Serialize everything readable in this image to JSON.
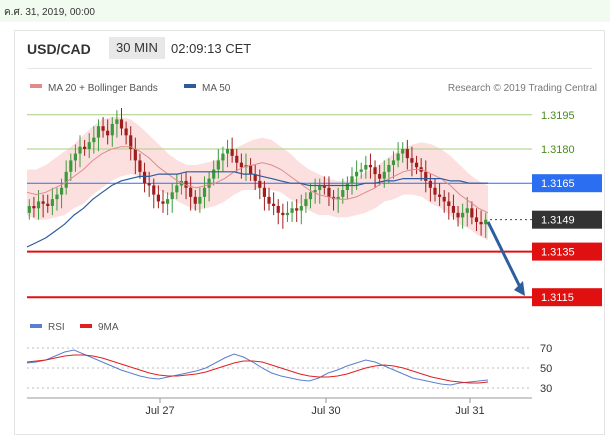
{
  "timestamp": "ค.ศ. 31, 2019, 00:00",
  "header": {
    "pair": "USD/CAD",
    "timeframe": "30 MIN",
    "time": "02:09:13 CET"
  },
  "legend": {
    "ma20": "MA 20 + Bollinger Bands",
    "ma50": "MA 50",
    "credit": "Research © 2019 Trading Central",
    "rsi": "RSI",
    "rsi_ma": "9MA"
  },
  "colors": {
    "topbar": "#f2fbef",
    "bull": "#3c9a3c",
    "bear": "#a01d1d",
    "bb_fill": "#fbd6d6",
    "ma20": "#e08a8a",
    "ma50": "#2f5b9a",
    "resistance": "#a7cf7e",
    "support": "#e01010",
    "pivot": "#2b6ef2",
    "last": "#333333",
    "arrow": "#2d5f9e",
    "rsi": "#5b7fd0",
    "rsi_ma": "#e02020"
  },
  "chart_data": [
    {
      "type": "candlestick",
      "title": "USD/CAD",
      "ylim": [
        1.3105,
        1.3205
      ],
      "x_ticks": [
        "Jul 27",
        "Jul 30",
        "Jul 31"
      ],
      "levels": [
        {
          "value": 1.3195,
          "label": "1.3195",
          "kind": "resistance"
        },
        {
          "value": 1.318,
          "label": "1.3180",
          "kind": "resistance"
        },
        {
          "value": 1.3165,
          "label": "1.3165",
          "kind": "pivot"
        },
        {
          "value": 1.3149,
          "label": "1.3149",
          "kind": "last"
        },
        {
          "value": 1.3135,
          "label": "1.3135",
          "kind": "support"
        },
        {
          "value": 1.3115,
          "label": "1.3115",
          "kind": "support"
        }
      ],
      "close": [
        1.3155,
        1.3154,
        1.3157,
        1.3156,
        1.3155,
        1.3158,
        1.316,
        1.3163,
        1.317,
        1.3175,
        1.3178,
        1.3181,
        1.318,
        1.3183,
        1.3185,
        1.319,
        1.3188,
        1.3186,
        1.3191,
        1.3193,
        1.3189,
        1.3186,
        1.318,
        1.3175,
        1.317,
        1.3165,
        1.3164,
        1.316,
        1.3157,
        1.3156,
        1.3158,
        1.3161,
        1.3164,
        1.3166,
        1.3163,
        1.3159,
        1.3156,
        1.3159,
        1.3163,
        1.3167,
        1.3171,
        1.3175,
        1.3178,
        1.318,
        1.3177,
        1.3174,
        1.3172,
        1.3173,
        1.3169,
        1.3166,
        1.3163,
        1.3159,
        1.3156,
        1.3155,
        1.3152,
        1.3151,
        1.3152,
        1.3154,
        1.3153,
        1.3155,
        1.3158,
        1.3161,
        1.3162,
        1.3164,
        1.3163,
        1.3159,
        1.3158,
        1.3159,
        1.3162,
        1.3165,
        1.3168,
        1.317,
        1.3171,
        1.3173,
        1.3172,
        1.3169,
        1.3167,
        1.317,
        1.3173,
        1.3175,
        1.3178,
        1.318,
        1.3176,
        1.3174,
        1.3172,
        1.317,
        1.3166,
        1.3163,
        1.316,
        1.3159,
        1.3157,
        1.3155,
        1.3152,
        1.315,
        1.3152,
        1.3154,
        1.315,
        1.3148,
        1.3147,
        1.3149
      ],
      "ma20": [
        1.3161,
        1.316,
        1.3161,
        1.3163,
        1.3165,
        1.3168,
        1.3171,
        1.3175,
        1.3178,
        1.318,
        1.3181,
        1.3181,
        1.3179,
        1.3176,
        1.3172,
        1.3169,
        1.3166,
        1.3164,
        1.3163,
        1.3164,
        1.3165,
        1.3167,
        1.317,
        1.3172,
        1.3173,
        1.3174,
        1.3173,
        1.3171,
        1.3168,
        1.3165,
        1.3162,
        1.316,
        1.3159,
        1.3158,
        1.3158,
        1.3159,
        1.3161,
        1.3163,
        1.3166,
        1.3168,
        1.317,
        1.3171,
        1.3171,
        1.3169,
        1.3167,
        1.3164,
        1.316,
        1.3157,
        1.3154,
        1.3152
      ],
      "ma50": [
        1.3137,
        1.3139,
        1.3141,
        1.3144,
        1.3147,
        1.3151,
        1.3154,
        1.3158,
        1.3161,
        1.3164,
        1.3166,
        1.3167,
        1.3168,
        1.3168,
        1.3169,
        1.3169,
        1.3169,
        1.317,
        1.317,
        1.317,
        1.317,
        1.317,
        1.317,
        1.3169,
        1.3169,
        1.3168,
        1.3167,
        1.3166,
        1.3165,
        1.3165,
        1.3164,
        1.3164,
        1.3164,
        1.3164,
        1.3164,
        1.3164,
        1.3165,
        1.3165,
        1.3166,
        1.3166,
        1.3167,
        1.3167,
        1.3167,
        1.3167,
        1.3167,
        1.3166,
        1.3166,
        1.3165,
        1.3165,
        1.3165
      ]
    },
    {
      "type": "line",
      "ylim": [
        20,
        80
      ],
      "y_ticks": [
        30,
        50,
        70
      ],
      "series": [
        {
          "name": "RSI",
          "values": [
            55,
            56,
            58,
            62,
            66,
            68,
            64,
            60,
            56,
            52,
            48,
            45,
            42,
            40,
            39,
            41,
            43,
            45,
            47,
            50,
            55,
            60,
            64,
            61,
            56,
            50,
            45,
            42,
            40,
            38,
            37,
            40,
            45,
            48,
            52,
            55,
            58,
            56,
            52,
            48,
            44,
            40,
            38,
            36,
            34,
            33,
            35,
            36,
            37,
            38
          ]
        },
        {
          "name": "9MA",
          "values": [
            56,
            57,
            58,
            60,
            62,
            63,
            63,
            62,
            60,
            57,
            54,
            51,
            48,
            45,
            43,
            42,
            42,
            43,
            44,
            46,
            49,
            52,
            55,
            57,
            57,
            56,
            53,
            50,
            47,
            44,
            42,
            41,
            41,
            42,
            44,
            47,
            50,
            52,
            53,
            52,
            50,
            47,
            44,
            41,
            39,
            37,
            36,
            35,
            35,
            36
          ]
        }
      ]
    }
  ]
}
